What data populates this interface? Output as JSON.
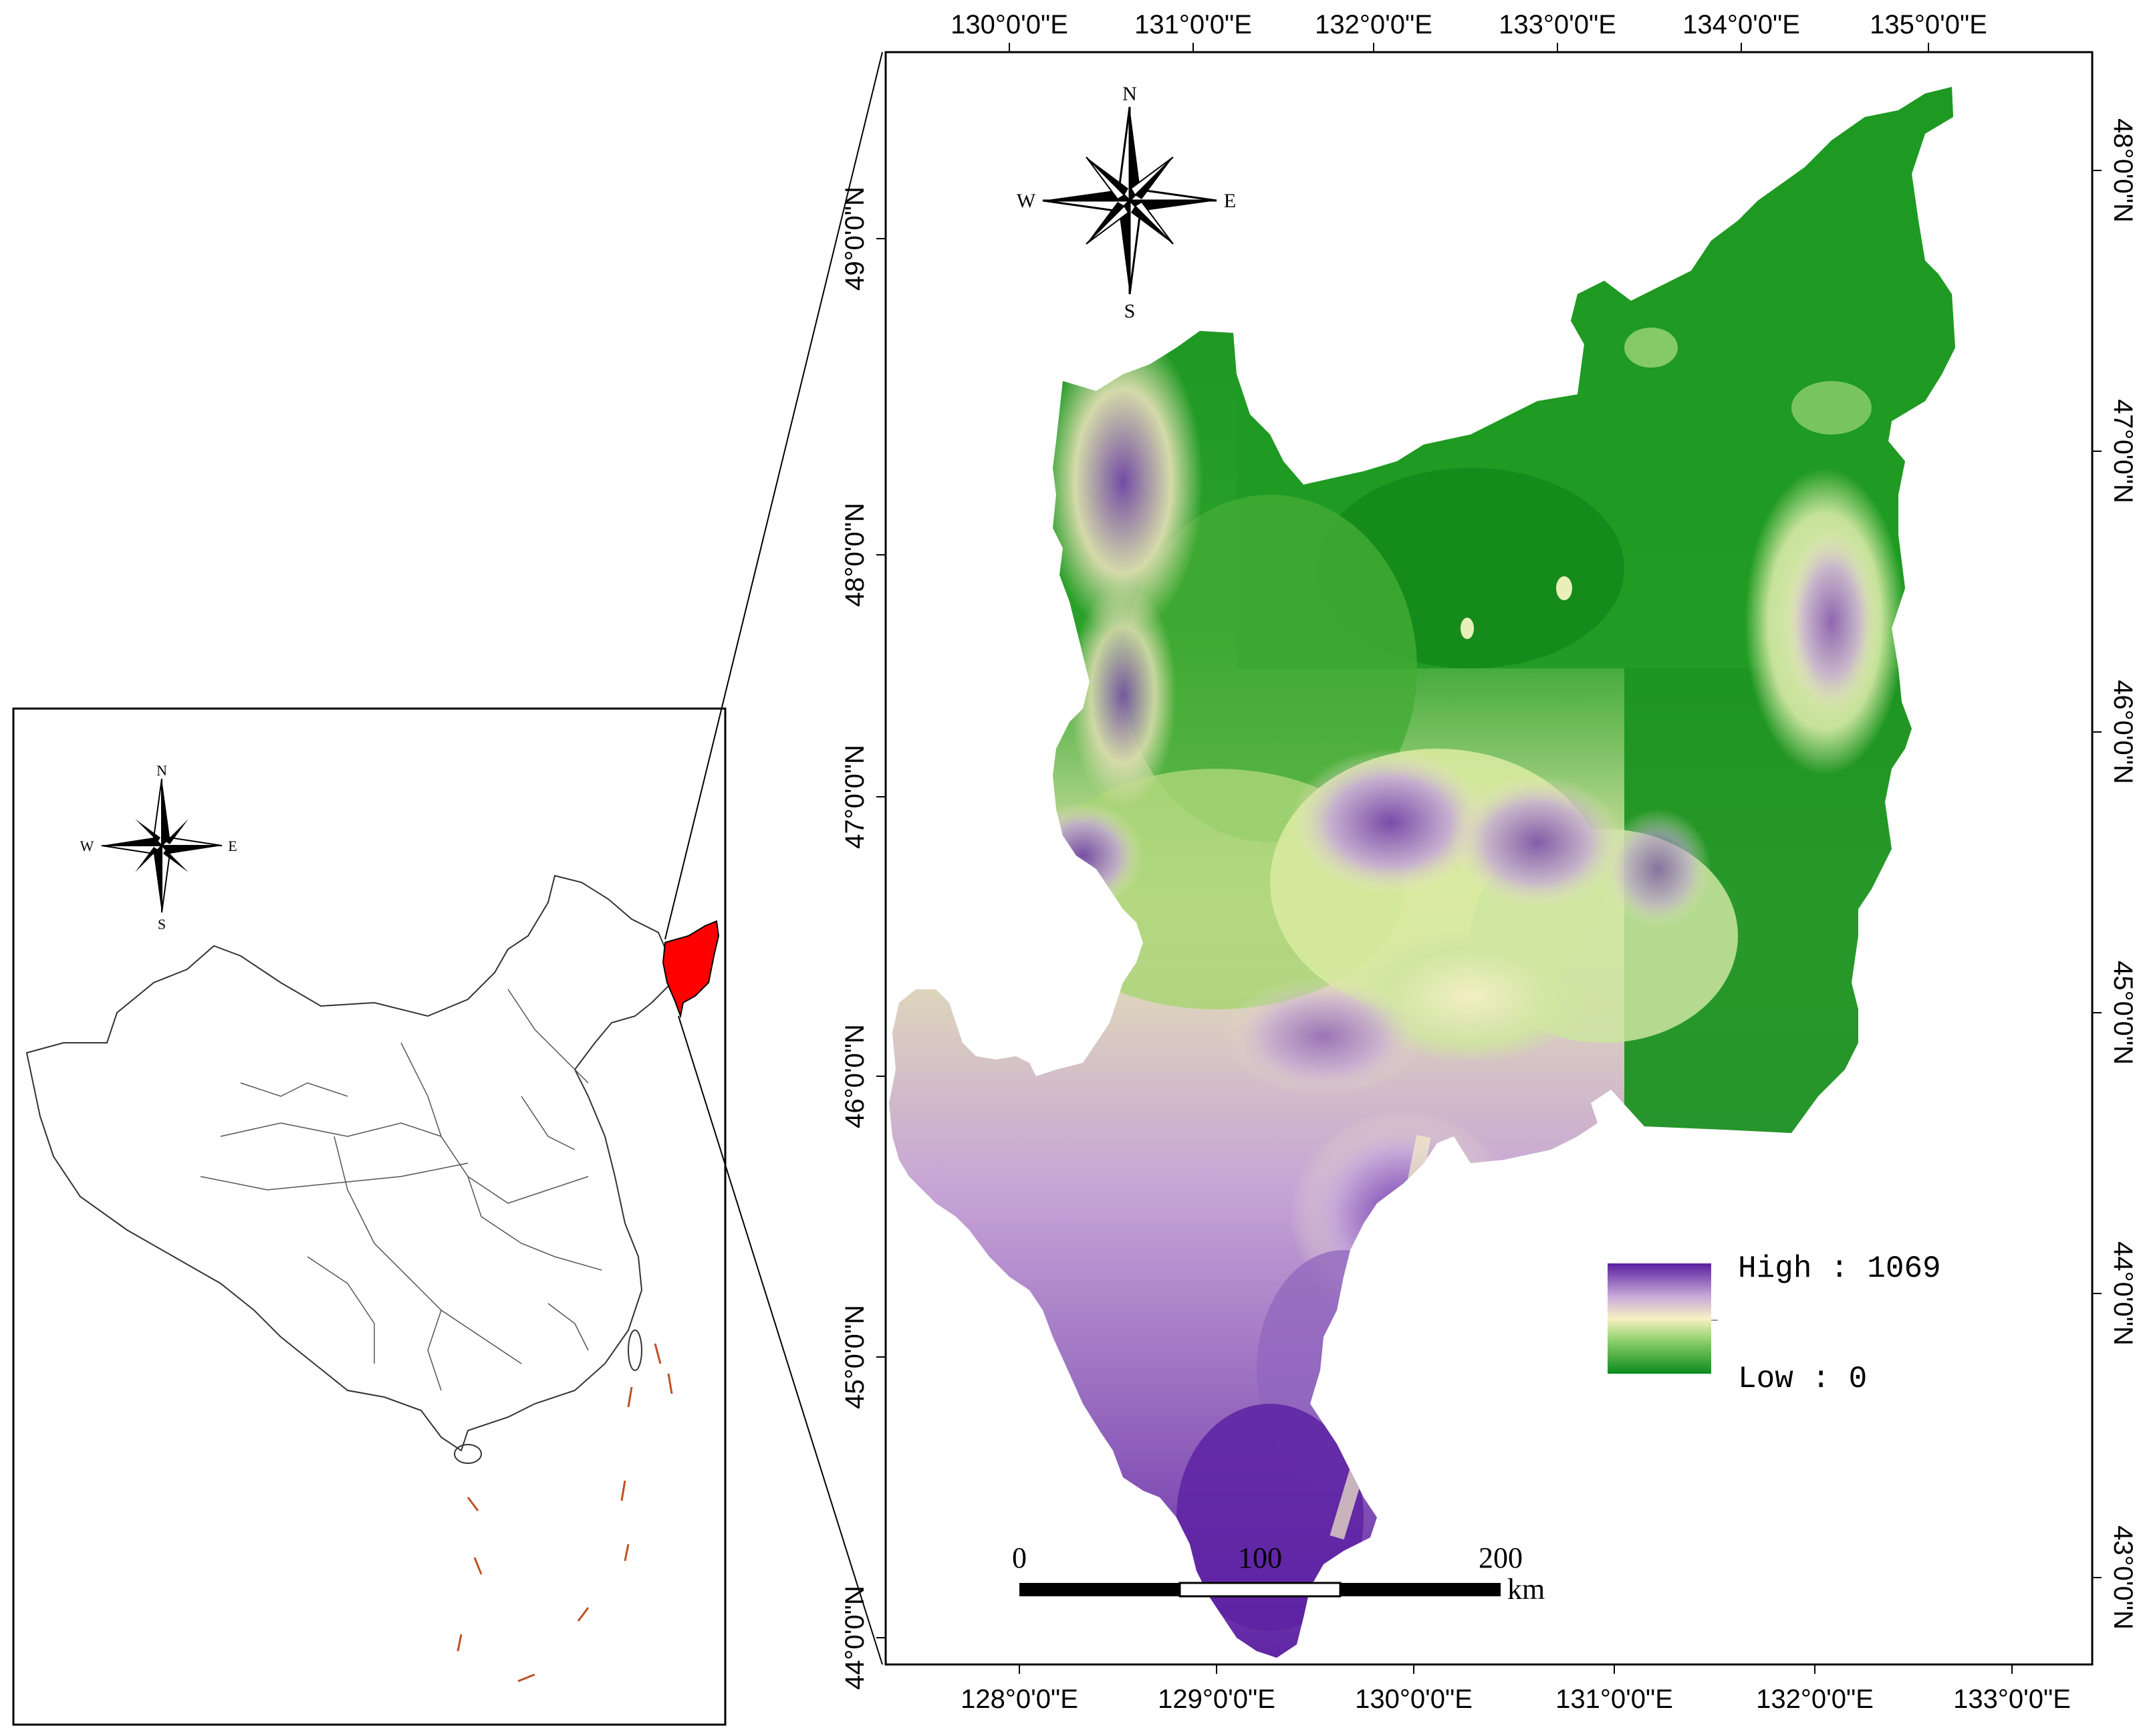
{
  "main_map": {
    "top_longitudes": [
      "130°0'0\"E",
      "131°0'0\"E",
      "132°0'0\"E",
      "133°0'0\"E",
      "134°0'0\"E",
      "135°0'0\"E"
    ],
    "bottom_longitudes": [
      "128°0'0\"E",
      "129°0'0\"E",
      "130°0'0\"E",
      "131°0'0\"E",
      "132°0'0\"E",
      "133°0'0\"E"
    ],
    "left_latitudes": [
      "49°0'0\"N",
      "48°0'0\"N",
      "47°0'0\"N",
      "46°0'0\"N",
      "45°0'0\"N",
      "44°0'0\"N"
    ],
    "right_latitudes": [
      "48°0'0\"N",
      "47°0'0\"N",
      "46°0'0\"N",
      "45°0'0\"N",
      "44°0'0\"N",
      "43°0'0\"N"
    ],
    "compass": {
      "n": "N",
      "s": "S",
      "e": "E",
      "w": "W"
    },
    "legend": {
      "high_label": "High : 1069",
      "low_label": "Low : 0",
      "colors": {
        "high": "#5a1fa0",
        "mid": "#f7f1c4",
        "low": "#0a8a1e"
      }
    },
    "scale_bar": {
      "labels": [
        "0",
        "100",
        "200"
      ],
      "unit": "km"
    }
  },
  "inset_map": {
    "compass": {
      "n": "N",
      "s": "S",
      "e": "E",
      "w": "W"
    },
    "highlight_color": "#ff0000"
  }
}
